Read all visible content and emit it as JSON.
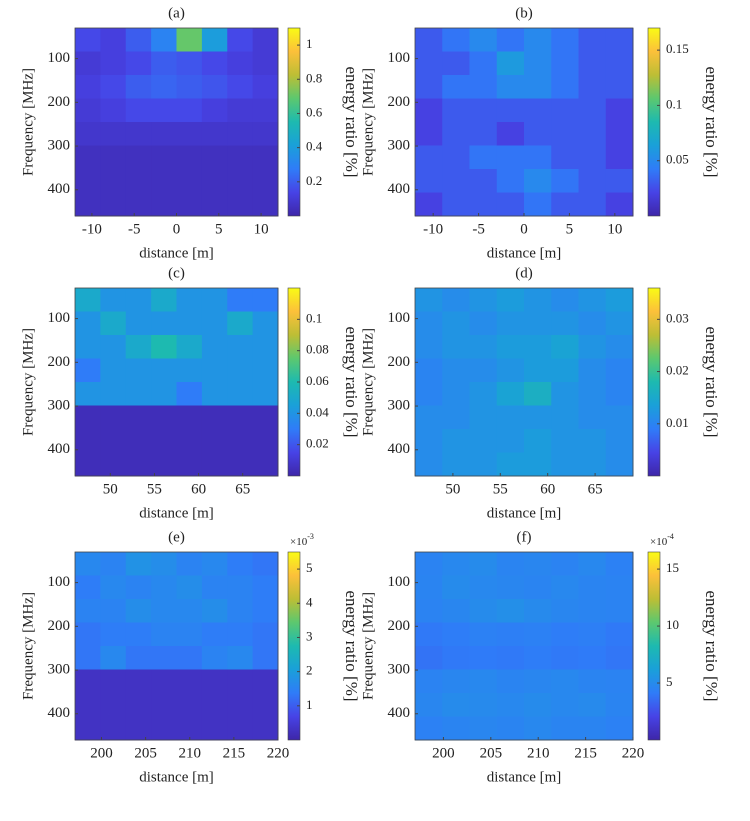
{
  "chart_data": [
    {
      "type": "heatmap",
      "title": "(a)",
      "xlabel": "distance [m]",
      "ylabel": "Frequency [MHz]",
      "colorbar_label": "energy ratio [%]",
      "colormap": "parula",
      "xlim": [
        -12,
        12
      ],
      "xticks": [
        -10,
        -5,
        0,
        5,
        10
      ],
      "ylim": [
        30,
        460
      ],
      "y_direction": "reverse",
      "yticks": [
        100,
        200,
        300,
        400
      ],
      "clim": [
        0,
        1.1
      ],
      "cticks": [
        0.2,
        0.4,
        0.6,
        0.8,
        1
      ],
      "z": [
        [
          0.15,
          0.12,
          0.2,
          0.3,
          0.7,
          0.4,
          0.15,
          0.1
        ],
        [
          0.1,
          0.12,
          0.15,
          0.2,
          0.18,
          0.15,
          0.12,
          0.1
        ],
        [
          0.12,
          0.15,
          0.2,
          0.22,
          0.2,
          0.18,
          0.15,
          0.12
        ],
        [
          0.1,
          0.12,
          0.15,
          0.15,
          0.15,
          0.12,
          0.1,
          0.1
        ],
        [
          0.08,
          0.08,
          0.08,
          0.08,
          0.08,
          0.08,
          0.08,
          0.08
        ],
        [
          0.05,
          0.05,
          0.05,
          0.05,
          0.05,
          0.05,
          0.05,
          0.05
        ],
        [
          0.05,
          0.05,
          0.05,
          0.05,
          0.05,
          0.05,
          0.05,
          0.05
        ],
        [
          0.05,
          0.05,
          0.05,
          0.05,
          0.05,
          0.05,
          0.05,
          0.05
        ]
      ]
    },
    {
      "type": "heatmap",
      "title": "(b)",
      "xlabel": "distance [m]",
      "ylabel": "Frequency [MHz]",
      "colorbar_label": "energy ratio [%]",
      "colormap": "parula",
      "xlim": [
        -12,
        12
      ],
      "xticks": [
        -10,
        -5,
        0,
        5,
        10
      ],
      "ylim": [
        30,
        460
      ],
      "y_direction": "reverse",
      "yticks": [
        100,
        200,
        300,
        400
      ],
      "clim": [
        0,
        0.17
      ],
      "cticks": [
        0.05,
        0.1,
        0.15
      ],
      "z": [
        [
          0.03,
          0.04,
          0.05,
          0.04,
          0.05,
          0.04,
          0.03,
          0.03
        ],
        [
          0.03,
          0.03,
          0.04,
          0.06,
          0.05,
          0.04,
          0.03,
          0.03
        ],
        [
          0.03,
          0.04,
          0.04,
          0.05,
          0.05,
          0.04,
          0.03,
          0.03
        ],
        [
          0.02,
          0.03,
          0.03,
          0.03,
          0.03,
          0.03,
          0.03,
          0.02
        ],
        [
          0.02,
          0.03,
          0.03,
          0.02,
          0.03,
          0.03,
          0.03,
          0.02
        ],
        [
          0.03,
          0.03,
          0.04,
          0.04,
          0.04,
          0.03,
          0.03,
          0.02
        ],
        [
          0.03,
          0.03,
          0.03,
          0.04,
          0.05,
          0.04,
          0.03,
          0.03
        ],
        [
          0.02,
          0.03,
          0.03,
          0.03,
          0.04,
          0.03,
          0.03,
          0.02
        ]
      ]
    },
    {
      "type": "heatmap",
      "title": "(c)",
      "xlabel": "distance [m]",
      "ylabel": "Frequency [MHz]",
      "colorbar_label": "energy ratio [%]",
      "colormap": "parula",
      "xlim": [
        46,
        69
      ],
      "xticks": [
        50,
        55,
        60,
        65
      ],
      "ylim": [
        30,
        460
      ],
      "y_direction": "reverse",
      "yticks": [
        100,
        200,
        300,
        400
      ],
      "clim": [
        0,
        0.12
      ],
      "cticks": [
        0.02,
        0.04,
        0.06,
        0.08,
        0.1
      ],
      "z": [
        [
          0.05,
          0.04,
          0.04,
          0.05,
          0.04,
          0.04,
          0.03,
          0.03
        ],
        [
          0.04,
          0.05,
          0.04,
          0.04,
          0.04,
          0.04,
          0.05,
          0.04
        ],
        [
          0.04,
          0.04,
          0.05,
          0.06,
          0.05,
          0.04,
          0.04,
          0.04
        ],
        [
          0.03,
          0.04,
          0.04,
          0.04,
          0.04,
          0.04,
          0.04,
          0.04
        ],
        [
          0.04,
          0.04,
          0.04,
          0.04,
          0.03,
          0.04,
          0.04,
          0.04
        ],
        [
          0.004,
          0.004,
          0.004,
          0.004,
          0.004,
          0.004,
          0.004,
          0.004
        ],
        [
          0.004,
          0.004,
          0.004,
          0.004,
          0.004,
          0.004,
          0.004,
          0.004
        ],
        [
          0.004,
          0.004,
          0.004,
          0.004,
          0.004,
          0.004,
          0.004,
          0.004
        ]
      ]
    },
    {
      "type": "heatmap",
      "title": "(d)",
      "xlabel": "distance [m]",
      "ylabel": "Frequency [MHz]",
      "colorbar_label": "energy ratio [%]",
      "colormap": "parula",
      "xlim": [
        46,
        69
      ],
      "xticks": [
        50,
        55,
        60,
        65
      ],
      "ylim": [
        30,
        460
      ],
      "y_direction": "reverse",
      "yticks": [
        100,
        200,
        300,
        400
      ],
      "clim": [
        0,
        0.036
      ],
      "cticks": [
        0.01,
        0.02,
        0.03
      ],
      "z": [
        [
          0.012,
          0.011,
          0.012,
          0.013,
          0.012,
          0.011,
          0.012,
          0.013
        ],
        [
          0.011,
          0.012,
          0.011,
          0.012,
          0.012,
          0.012,
          0.011,
          0.012
        ],
        [
          0.011,
          0.012,
          0.012,
          0.013,
          0.013,
          0.014,
          0.012,
          0.011
        ],
        [
          0.01,
          0.011,
          0.011,
          0.012,
          0.013,
          0.013,
          0.011,
          0.01
        ],
        [
          0.01,
          0.011,
          0.012,
          0.014,
          0.016,
          0.012,
          0.011,
          0.01
        ],
        [
          0.011,
          0.011,
          0.012,
          0.012,
          0.012,
          0.012,
          0.011,
          0.011
        ],
        [
          0.011,
          0.012,
          0.012,
          0.012,
          0.013,
          0.012,
          0.012,
          0.011
        ],
        [
          0.011,
          0.012,
          0.012,
          0.013,
          0.013,
          0.012,
          0.012,
          0.011
        ]
      ]
    },
    {
      "type": "heatmap",
      "title": "(e)",
      "xlabel": "distance [m]",
      "ylabel": "Frequency [MHz]",
      "colorbar_label": "energy ratio [%]",
      "colorbar_exponent": "×10",
      "colorbar_exponent_power": "-3",
      "colormap": "parula",
      "xlim": [
        197,
        220
      ],
      "xticks": [
        200,
        205,
        210,
        215,
        220
      ],
      "ylim": [
        30,
        460
      ],
      "y_direction": "reverse",
      "yticks": [
        100,
        200,
        300,
        400
      ],
      "clim": [
        0,
        5.5
      ],
      "cticks": [
        1,
        2,
        3,
        4,
        5
      ],
      "z": [
        [
          1.6,
          1.5,
          1.8,
          1.7,
          1.5,
          1.6,
          1.4,
          1.3
        ],
        [
          1.4,
          1.6,
          1.5,
          1.6,
          1.7,
          1.5,
          1.5,
          1.4
        ],
        [
          1.5,
          1.5,
          1.7,
          1.6,
          1.6,
          1.7,
          1.5,
          1.4
        ],
        [
          1.3,
          1.4,
          1.4,
          1.5,
          1.5,
          1.4,
          1.4,
          1.3
        ],
        [
          1.3,
          1.6,
          1.3,
          1.3,
          1.3,
          1.5,
          1.6,
          1.3
        ],
        [
          0.3,
          0.3,
          0.3,
          0.3,
          0.3,
          0.3,
          0.3,
          0.3
        ],
        [
          0.3,
          0.3,
          0.3,
          0.3,
          0.3,
          0.3,
          0.3,
          0.3
        ],
        [
          0.3,
          0.3,
          0.3,
          0.3,
          0.3,
          0.3,
          0.3,
          0.3
        ]
      ]
    },
    {
      "type": "heatmap",
      "title": "(f)",
      "xlabel": "distance [m]",
      "ylabel": "Frequency [MHz]",
      "colorbar_label": "energy ratio [%]",
      "colorbar_exponent": "×10",
      "colorbar_exponent_power": "-4",
      "colormap": "parula",
      "xlim": [
        197,
        220
      ],
      "xticks": [
        200,
        205,
        210,
        215,
        220
      ],
      "ylim": [
        30,
        460
      ],
      "y_direction": "reverse",
      "yticks": [
        100,
        200,
        300,
        400
      ],
      "clim": [
        0,
        16.5
      ],
      "cticks": [
        5,
        10,
        15
      ],
      "z": [
        [
          4.5,
          4.8,
          5,
          4.6,
          4.7,
          4.5,
          4.8,
          4.4
        ],
        [
          4.6,
          5,
          4.8,
          4.7,
          4.6,
          4.8,
          4.6,
          4.5
        ],
        [
          4.5,
          4.7,
          5,
          5.2,
          4.9,
          4.7,
          4.6,
          4.5
        ],
        [
          4,
          4.2,
          4.4,
          4.3,
          4.4,
          4.2,
          4.3,
          4
        ],
        [
          3.8,
          4,
          4.1,
          4,
          4.2,
          4,
          4.1,
          3.9
        ],
        [
          4.5,
          4.7,
          4.8,
          4.6,
          4.7,
          4.8,
          4.6,
          4.5
        ],
        [
          4.7,
          5,
          4.9,
          4.8,
          5,
          4.8,
          4.9,
          4.6
        ],
        [
          4.4,
          4.6,
          4.7,
          4.6,
          4.8,
          4.6,
          4.6,
          4.4
        ]
      ]
    }
  ]
}
